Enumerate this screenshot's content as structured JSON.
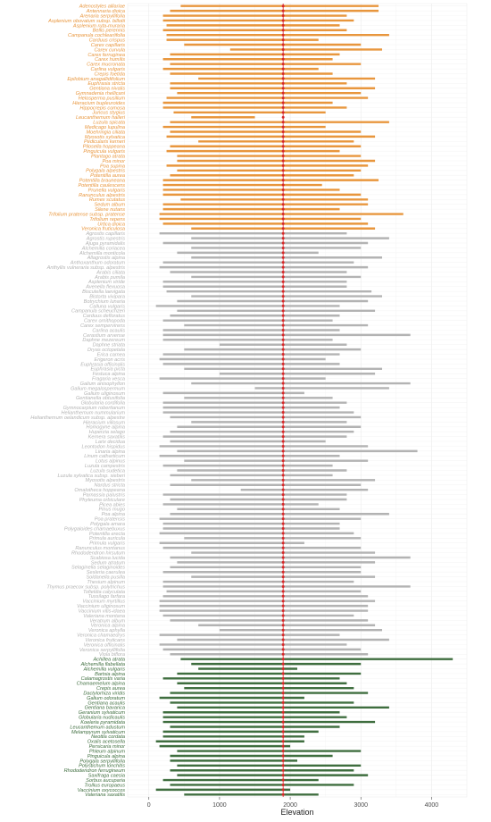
{
  "chart_data": {
    "type": "range",
    "xlabel": "Elevation",
    "xlim": [
      -300,
      4500
    ],
    "xticks": [
      0,
      1000,
      2000,
      3000,
      4000
    ],
    "reference_line": 1900,
    "grid": true,
    "legend": "none",
    "colors": {
      "orange": "#e8963d",
      "grey": "#b3b3b3",
      "green": "#3f6e3f",
      "red": "#d62728"
    },
    "groups": [
      {
        "color": "orange",
        "items": [
          {
            "label": "Adenostyles alliariae",
            "min": 450,
            "max": 3250
          },
          {
            "label": "Antennaria dioica",
            "min": 300,
            "max": 3250
          },
          {
            "label": "Arenaria serpyllifolia",
            "min": 200,
            "max": 2800
          },
          {
            "label": "Asplenium obovatum subsp. billotii",
            "min": 200,
            "max": 2900
          },
          {
            "label": "Asplenium ruta-muraria",
            "min": 250,
            "max": 2700
          },
          {
            "label": "Bellis perennis",
            "min": 200,
            "max": 2800
          },
          {
            "label": "Campanula cochleariifolia",
            "min": 250,
            "max": 3400
          },
          {
            "label": "Carduus crispus",
            "min": 250,
            "max": 2400
          },
          {
            "label": "Carex capillaris",
            "min": 500,
            "max": 3000
          },
          {
            "label": "Carex curvula",
            "min": 1150,
            "max": 3300
          },
          {
            "label": "Carex ferruginea",
            "min": 300,
            "max": 2700
          },
          {
            "label": "Carex humilis",
            "min": 200,
            "max": 2600
          },
          {
            "label": "Carex mucronata",
            "min": 300,
            "max": 3000
          },
          {
            "label": "Carlina vulgaris",
            "min": 200,
            "max": 2400
          },
          {
            "label": "Crepis foetida",
            "min": 300,
            "max": 2600
          },
          {
            "label": "Epilobium anagallidifolium",
            "min": 700,
            "max": 3200
          },
          {
            "label": "Euphrasia stricta",
            "min": 300,
            "max": 2800
          },
          {
            "label": "Gentiana nivalis",
            "min": 300,
            "max": 3200
          },
          {
            "label": "Gymnadenia rhellicani",
            "min": 400,
            "max": 3000
          },
          {
            "label": "Helosperma pusillum",
            "min": 250,
            "max": 3100
          },
          {
            "label": "Hieracium bupleuroides",
            "min": 200,
            "max": 2600
          },
          {
            "label": "Hippocrepis comosa",
            "min": 200,
            "max": 2800
          },
          {
            "label": "Juncus stygius",
            "min": 350,
            "max": 2500
          },
          {
            "label": "Leucanthemum halleri",
            "min": 600,
            "max": 1500
          },
          {
            "label": "Luzula spicata",
            "min": 300,
            "max": 3400
          },
          {
            "label": "Medicago lupulina",
            "min": 200,
            "max": 2500
          },
          {
            "label": "Moehringia ciliata",
            "min": 300,
            "max": 3000
          },
          {
            "label": "Myosotis sylvatica",
            "min": 250,
            "max": 3200
          },
          {
            "label": "Pedicularis kerneri",
            "min": 700,
            "max": 2900
          },
          {
            "label": "Pilosella hoppeana",
            "min": 300,
            "max": 3000
          },
          {
            "label": "Pinguicula vulgaris",
            "min": 250,
            "max": 2700
          },
          {
            "label": "Plantago atrata",
            "min": 400,
            "max": 3000
          },
          {
            "label": "Poa minor",
            "min": 400,
            "max": 3200
          },
          {
            "label": "Poa supina",
            "min": 250,
            "max": 3100
          },
          {
            "label": "Polygala alpestris",
            "min": 400,
            "max": 3000
          },
          {
            "label": "Potentilla aurea",
            "min": 300,
            "max": 2900
          },
          {
            "label": "Potentilla brauneana",
            "min": 200,
            "max": 3250
          },
          {
            "label": "Potentilla caulescens",
            "min": 200,
            "max": 2450
          },
          {
            "label": "Prunella vulgaris",
            "min": 200,
            "max": 2700
          },
          {
            "label": "Ranunculus alpestris",
            "min": 200,
            "max": 3000
          },
          {
            "label": "Rumex scutatus",
            "min": 450,
            "max": 3100
          },
          {
            "label": "Sedum album",
            "min": 200,
            "max": 3100
          },
          {
            "label": "Silene nutans",
            "min": 200,
            "max": 2700
          },
          {
            "label": "Trifolium pratense subsp. pratense",
            "min": 150,
            "max": 3600
          },
          {
            "label": "Trifolium repens",
            "min": 150,
            "max": 3000
          },
          {
            "label": "Urtica dioica",
            "min": 200,
            "max": 3100
          },
          {
            "label": "Veronica fruticulosa",
            "min": 600,
            "max": 3200
          }
        ]
      },
      {
        "color": "grey",
        "items": [
          {
            "label": "Agrostis capillaris",
            "min": 150,
            "max": 2800
          },
          {
            "label": "Agrostis rupestris",
            "min": 600,
            "max": 3400
          },
          {
            "label": "Ajuga pyramidalis",
            "min": 200,
            "max": 3100
          },
          {
            "label": "Alchemilla coriacea",
            "min": 600,
            "max": 3000
          },
          {
            "label": "Alchemilla monticola",
            "min": 400,
            "max": 2400
          },
          {
            "label": "Allagrostis alpina",
            "min": 600,
            "max": 3300
          },
          {
            "label": "Anthoxanthum odoratum",
            "min": 200,
            "max": 2900
          },
          {
            "label": "Anthyllis vulneraria subsp. alpestris",
            "min": 150,
            "max": 3100
          },
          {
            "label": "Arabis ciliata",
            "min": 300,
            "max": 2800
          },
          {
            "label": "Arabis pumila",
            "min": 600,
            "max": 3000
          },
          {
            "label": "Asplenium viride",
            "min": 200,
            "max": 2800
          },
          {
            "label": "Avenella flexuosa",
            "min": 200,
            "max": 2800
          },
          {
            "label": "Biscutella laevigata",
            "min": 250,
            "max": 3150
          },
          {
            "label": "Bistorta vivipara",
            "min": 600,
            "max": 3300
          },
          {
            "label": "Botrychium lunaria",
            "min": 400,
            "max": 3100
          },
          {
            "label": "Calluna vulgaris",
            "min": 100,
            "max": 2700
          },
          {
            "label": "Campanula scheuchzeri",
            "min": 400,
            "max": 3200
          },
          {
            "label": "Carduus defloratus",
            "min": 300,
            "max": 2700
          },
          {
            "label": "Carex ornithopoda",
            "min": 200,
            "max": 2600
          },
          {
            "label": "Carex sempervirens",
            "min": 500,
            "max": 3100
          },
          {
            "label": "Carlina acaulis",
            "min": 200,
            "max": 2700
          },
          {
            "label": "Cerastium arvense",
            "min": 200,
            "max": 3700
          },
          {
            "label": "Daphne mezereum",
            "min": 200,
            "max": 2600
          },
          {
            "label": "Daphne striata",
            "min": 1000,
            "max": 2800
          },
          {
            "label": "Dryas octopetala",
            "min": 500,
            "max": 3000
          },
          {
            "label": "Erica carnea",
            "min": 200,
            "max": 2700
          },
          {
            "label": "Erigeron acris",
            "min": 150,
            "max": 2500
          },
          {
            "label": "Euphrasia officinalis",
            "min": 200,
            "max": 2700
          },
          {
            "label": "Euphrasia picta",
            "min": 500,
            "max": 3300
          },
          {
            "label": "Festuca alpina",
            "min": 1000,
            "max": 3200
          },
          {
            "label": "Fragaria vesca",
            "min": 150,
            "max": 2500
          },
          {
            "label": "Galium anisophyllon",
            "min": 600,
            "max": 3700
          },
          {
            "label": "Galium megalospermum",
            "min": 1500,
            "max": 3400
          },
          {
            "label": "Galium uliginosum",
            "min": 200,
            "max": 2200
          },
          {
            "label": "Gentianella obtusifolia",
            "min": 500,
            "max": 2600
          },
          {
            "label": "Globularia cordifolia",
            "min": 200,
            "max": 2800
          },
          {
            "label": "Gymnocarpium robertianum",
            "min": 200,
            "max": 2700
          },
          {
            "label": "Helianthemum nummularium",
            "min": 200,
            "max": 2900
          },
          {
            "label": "Helianthemum oelandicum subsp. alpestre",
            "min": 300,
            "max": 3000
          },
          {
            "label": "Hieracium villosum",
            "min": 600,
            "max": 2800
          },
          {
            "label": "Homogyne alpina",
            "min": 400,
            "max": 3000
          },
          {
            "label": "Huperzia selago",
            "min": 300,
            "max": 2900
          },
          {
            "label": "Kernera saxatilis",
            "min": 200,
            "max": 2800
          },
          {
            "label": "Larix decidua",
            "min": 300,
            "max": 2500
          },
          {
            "label": "Leontodon hispidus",
            "min": 150,
            "max": 3100
          },
          {
            "label": "Linaria alpina",
            "min": 400,
            "max": 3800
          },
          {
            "label": "Linum catharticum",
            "min": 150,
            "max": 2700
          },
          {
            "label": "Lotus alpinus",
            "min": 500,
            "max": 3100
          },
          {
            "label": "Luzula campestris",
            "min": 200,
            "max": 2600
          },
          {
            "label": "Luzula sudetica",
            "min": 400,
            "max": 2800
          },
          {
            "label": "Luzula sylvatica subsp. sieberi",
            "min": 300,
            "max": 2600
          },
          {
            "label": "Myosotis alpestris",
            "min": 600,
            "max": 3200
          },
          {
            "label": "Nardus stricta",
            "min": 300,
            "max": 3000
          },
          {
            "label": "Omalotheca hoppeana",
            "min": 1300,
            "max": 3100
          },
          {
            "label": "Parnassia palustris",
            "min": 200,
            "max": 2800
          },
          {
            "label": "Phyteuma orbiculare",
            "min": 300,
            "max": 2800
          },
          {
            "label": "Picea abies",
            "min": 200,
            "max": 2400
          },
          {
            "label": "Pinus mugo",
            "min": 400,
            "max": 2700
          },
          {
            "label": "Poa alpina",
            "min": 300,
            "max": 3400
          },
          {
            "label": "Poa pratensis",
            "min": 150,
            "max": 3000
          },
          {
            "label": "Polygala amara",
            "min": 200,
            "max": 2700
          },
          {
            "label": "Polygaloides chamaebuxus",
            "min": 200,
            "max": 2700
          },
          {
            "label": "Potentilla erecta",
            "min": 150,
            "max": 2900
          },
          {
            "label": "Primula auricula",
            "min": 500,
            "max": 3000
          },
          {
            "label": "Primula vulgaris",
            "min": 150,
            "max": 2200
          },
          {
            "label": "Ranunculus montanus",
            "min": 200,
            "max": 3000
          },
          {
            "label": "Rhododendron hirsutum",
            "min": 600,
            "max": 3200
          },
          {
            "label": "Scabiosa lucida",
            "min": 300,
            "max": 3700
          },
          {
            "label": "Sedum atratum",
            "min": 400,
            "max": 3200
          },
          {
            "label": "Selaginella selaginoides",
            "min": 300,
            "max": 3000
          },
          {
            "label": "Sesleria caerulea",
            "min": 200,
            "max": 3000
          },
          {
            "label": "Soldanella pusilla",
            "min": 600,
            "max": 3200
          },
          {
            "label": "Thesium alpinum",
            "min": 200,
            "max": 2900
          },
          {
            "label": "Thymus praecox subsp. polytrichus",
            "min": 200,
            "max": 3700
          },
          {
            "label": "Tofieldia calyculata",
            "min": 250,
            "max": 3000
          },
          {
            "label": "Tussilago farfara",
            "min": 200,
            "max": 3100
          },
          {
            "label": "Vaccinium myrtillus",
            "min": 150,
            "max": 3200
          },
          {
            "label": "Vaccinium uliginosum",
            "min": 150,
            "max": 3100
          },
          {
            "label": "Vaccinium vitis-idaea",
            "min": 150,
            "max": 3100
          },
          {
            "label": "Valeriana montana",
            "min": 200,
            "max": 2900
          },
          {
            "label": "Veratrum album",
            "min": 300,
            "max": 3100
          },
          {
            "label": "Veronica alpina",
            "min": 700,
            "max": 3200
          },
          {
            "label": "Veronica aphylla",
            "min": 1000,
            "max": 3300
          },
          {
            "label": "Veronica chamaedrys",
            "min": 150,
            "max": 2700
          },
          {
            "label": "Veronica fruticans",
            "min": 400,
            "max": 3400
          },
          {
            "label": "Veronica officinalis",
            "min": 150,
            "max": 2800
          },
          {
            "label": "Veronica serpyllifolia",
            "min": 200,
            "max": 3000
          },
          {
            "label": "Viola biflora",
            "min": 300,
            "max": 3100
          }
        ]
      },
      {
        "color": "green",
        "items": [
          {
            "label": "Achillea atrata",
            "min": 450,
            "max": 4300
          },
          {
            "label": "Alchemilla flabellata",
            "min": 600,
            "max": 3000
          },
          {
            "label": "Alchemilla vulgaris",
            "min": 700,
            "max": 2100
          },
          {
            "label": "Bartsia alpina",
            "min": 400,
            "max": 3000
          },
          {
            "label": "Calamagrostis varia",
            "min": 200,
            "max": 2700
          },
          {
            "label": "Chamaemelum alpina",
            "min": 400,
            "max": 2800
          },
          {
            "label": "Crepis aurea",
            "min": 500,
            "max": 2900
          },
          {
            "label": "Dactylorhiza viridis",
            "min": 300,
            "max": 3100
          },
          {
            "label": "Galium odoratum",
            "min": 150,
            "max": 2200
          },
          {
            "label": "Gentiana acaulis",
            "min": 300,
            "max": 2900
          },
          {
            "label": "Gentiana bavarica",
            "min": 400,
            "max": 3400
          },
          {
            "label": "Geranium sylvaticum",
            "min": 200,
            "max": 2700
          },
          {
            "label": "Globularia nudicaulis",
            "min": 200,
            "max": 2800
          },
          {
            "label": "Koeleria pyramidata",
            "min": 200,
            "max": 3200
          },
          {
            "label": "Leucanthemum adustum",
            "min": 300,
            "max": 2700
          },
          {
            "label": "Melampyrum sylvaticum",
            "min": 200,
            "max": 2400
          },
          {
            "label": "Neottia cordata",
            "min": 200,
            "max": 2200
          },
          {
            "label": "Oxalis acetosella",
            "min": 100,
            "max": 2200
          },
          {
            "label": "Persicaria minor",
            "min": 150,
            "max": 2000
          },
          {
            "label": "Phleum alpinum",
            "min": 400,
            "max": 3000
          },
          {
            "label": "Pinguicula alpina",
            "min": 300,
            "max": 2600
          },
          {
            "label": "Polygala serpyllifolia",
            "min": 300,
            "max": 2100
          },
          {
            "label": "Polystichum lonchitis",
            "min": 400,
            "max": 3000
          },
          {
            "label": "Rhododendron ferrugineum",
            "min": 300,
            "max": 2900
          },
          {
            "label": "Saxifraga caesia",
            "min": 400,
            "max": 3100
          },
          {
            "label": "Sorbus aucuparia",
            "min": 200,
            "max": 2400
          },
          {
            "label": "Trollius europaeus",
            "min": 300,
            "max": 2900
          },
          {
            "label": "Vaccinium oxycoccos",
            "min": 100,
            "max": 2000
          },
          {
            "label": "Valeriana saxatilis",
            "min": 500,
            "max": 2400
          }
        ]
      }
    ]
  }
}
